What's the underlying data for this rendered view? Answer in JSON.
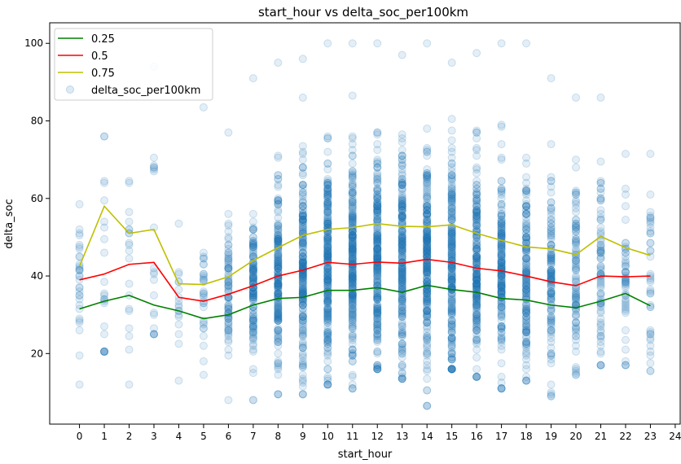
{
  "chart_data": {
    "type": "scatter",
    "title": "start_hour vs delta_soc_per100km",
    "xlabel": "start_hour",
    "ylabel": "delta_soc",
    "xlim": [
      -1.2,
      24.2
    ],
    "ylim": [
      1.8,
      105.3
    ],
    "x_ticks": [
      0,
      1,
      2,
      3,
      4,
      5,
      6,
      7,
      8,
      9,
      10,
      11,
      12,
      13,
      14,
      15,
      16,
      17,
      18,
      19,
      20,
      21,
      22,
      23,
      24
    ],
    "y_ticks": [
      20,
      40,
      60,
      80,
      100
    ],
    "grid": false,
    "legend_position": "top-left",
    "quantile_lines": [
      {
        "name": "0.25",
        "color": "#008000",
        "values": [
          31.5,
          33.5,
          35.0,
          32.5,
          31.0,
          29.0,
          30.0,
          32.5,
          34.2,
          34.5,
          36.3,
          36.3,
          37.0,
          35.8,
          37.6,
          36.5,
          35.8,
          34.2,
          33.8,
          32.5,
          31.8,
          33.5,
          35.5,
          32.3
        ]
      },
      {
        "name": "0.5",
        "color": "#ff0000",
        "values": [
          39.0,
          40.5,
          43.0,
          43.5,
          34.5,
          33.5,
          35.3,
          37.5,
          40.0,
          41.5,
          43.5,
          43.0,
          43.6,
          43.3,
          44.3,
          43.5,
          42.0,
          41.3,
          40.0,
          38.5,
          37.5,
          40.0,
          39.8,
          40.0
        ]
      },
      {
        "name": "0.75",
        "color": "#bfbf00",
        "values": [
          42.5,
          58.0,
          51.0,
          52.0,
          38.0,
          37.8,
          39.8,
          44.0,
          47.3,
          50.5,
          52.0,
          52.5,
          53.5,
          52.8,
          52.7,
          53.2,
          51.0,
          49.2,
          47.5,
          47.0,
          45.5,
          50.2,
          47.3,
          45.3
        ]
      }
    ],
    "scatter_series": {
      "name": "delta_soc_per100km",
      "color": "#1f77b4",
      "opacity": 0.12,
      "note_points": "points per hour with value range (min, max)",
      "hours": [
        {
          "x": 0,
          "min": 12.0,
          "max": 58.5,
          "count": 30
        },
        {
          "x": 1,
          "min": 20.5,
          "max": 76.0,
          "count": 22
        },
        {
          "x": 2,
          "min": 12.0,
          "max": 64.5,
          "count": 18
        },
        {
          "x": 3,
          "min": 25.0,
          "max": 94.0,
          "count": 18
        },
        {
          "x": 4,
          "min": 13.0,
          "max": 53.5,
          "count": 16
        },
        {
          "x": 5,
          "min": 14.5,
          "max": 83.5,
          "count": 30
        },
        {
          "x": 6,
          "min": 8.0,
          "max": 77.0,
          "count": 80
        },
        {
          "x": 7,
          "min": 8.0,
          "max": 91.0,
          "count": 140
        },
        {
          "x": 8,
          "min": 9.5,
          "max": 95.0,
          "count": 200
        },
        {
          "x": 9,
          "min": 9.5,
          "max": 96.0,
          "count": 230
        },
        {
          "x": 10,
          "min": 12.0,
          "max": 100.0,
          "count": 260
        },
        {
          "x": 11,
          "min": 11.0,
          "max": 100.0,
          "count": 260
        },
        {
          "x": 12,
          "min": 16.0,
          "max": 100.0,
          "count": 250
        },
        {
          "x": 13,
          "min": 13.5,
          "max": 97.0,
          "count": 240
        },
        {
          "x": 14,
          "min": 6.5,
          "max": 100.0,
          "count": 260
        },
        {
          "x": 15,
          "min": 16.0,
          "max": 95.0,
          "count": 240
        },
        {
          "x": 16,
          "min": 14.0,
          "max": 97.5,
          "count": 230
        },
        {
          "x": 17,
          "min": 11.0,
          "max": 100.0,
          "count": 200
        },
        {
          "x": 18,
          "min": 13.0,
          "max": 100.0,
          "count": 170
        },
        {
          "x": 19,
          "min": 9.0,
          "max": 91.0,
          "count": 130
        },
        {
          "x": 20,
          "min": 14.5,
          "max": 86.0,
          "count": 100
        },
        {
          "x": 21,
          "min": 17.0,
          "max": 86.0,
          "count": 80
        },
        {
          "x": 22,
          "min": 17.0,
          "max": 71.5,
          "count": 50
        },
        {
          "x": 23,
          "min": 15.5,
          "max": 71.5,
          "count": 40
        }
      ]
    },
    "legend": [
      "0.25",
      "0.5",
      "0.75",
      "delta_soc_per100km"
    ]
  }
}
